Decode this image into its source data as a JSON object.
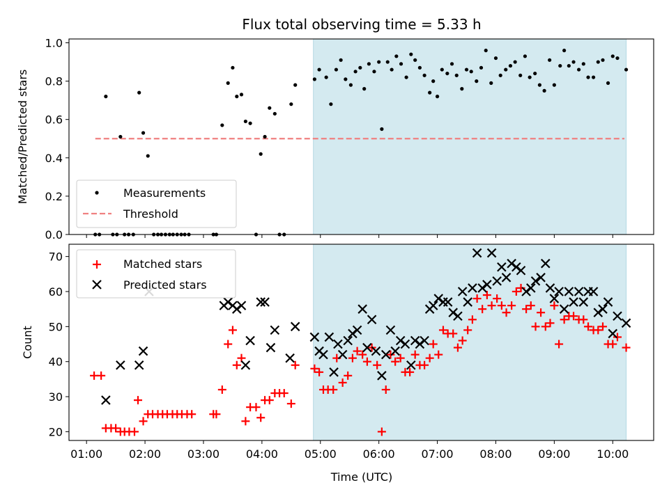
{
  "chart_data": {
    "title": "Flux total observing time = 5.33 h",
    "xlabel": "Time (UTC)",
    "x_tick_labels": [
      "01:00",
      "02:00",
      "03:00",
      "04:00",
      "05:00",
      "06:00",
      "07:00",
      "08:00",
      "09:00",
      "10:00"
    ],
    "x_ticks_hours": [
      1,
      2,
      3,
      4,
      5,
      6,
      7,
      8,
      9,
      10
    ],
    "xlim_hours": [
      0.7,
      10.7
    ],
    "shaded_span_hours": [
      4.88,
      10.23
    ],
    "colors": {
      "shade": "#d4eaf0",
      "threshold": "#f08080",
      "matched": "#ff0000",
      "predicted": "#000000"
    },
    "top": {
      "type": "scatter",
      "ylabel": "Matched/Predicted stars",
      "ylim": [
        0,
        1.02
      ],
      "y_ticks": [
        0.0,
        0.2,
        0.4,
        0.6,
        0.8,
        1.0
      ],
      "y_tick_labels": [
        "0.0",
        "0.2",
        "0.4",
        "0.6",
        "0.8",
        "1.0"
      ],
      "legend": [
        {
          "label": "Measurements",
          "marker": "dot"
        },
        {
          "label": "Threshold",
          "marker": "dashed"
        }
      ],
      "threshold": {
        "value": 0.5,
        "x_start": 1.15,
        "x_end": 10.2
      },
      "measurements": [
        [
          1.15,
          0.0
        ],
        [
          1.22,
          0.0
        ],
        [
          1.33,
          0.72
        ],
        [
          1.45,
          0.0
        ],
        [
          1.52,
          0.0
        ],
        [
          1.58,
          0.51
        ],
        [
          1.65,
          0.0
        ],
        [
          1.72,
          0.0
        ],
        [
          1.8,
          0.0
        ],
        [
          1.9,
          0.74
        ],
        [
          1.97,
          0.53
        ],
        [
          2.05,
          0.41
        ],
        [
          2.15,
          0.0
        ],
        [
          2.22,
          0.0
        ],
        [
          2.28,
          0.0
        ],
        [
          2.35,
          0.0
        ],
        [
          2.42,
          0.0
        ],
        [
          2.48,
          0.0
        ],
        [
          2.55,
          0.0
        ],
        [
          2.62,
          0.0
        ],
        [
          2.68,
          0.0
        ],
        [
          2.75,
          0.0
        ],
        [
          3.17,
          0.0
        ],
        [
          3.22,
          0.0
        ],
        [
          3.32,
          0.57
        ],
        [
          3.42,
          0.79
        ],
        [
          3.5,
          0.87
        ],
        [
          3.57,
          0.72
        ],
        [
          3.65,
          0.73
        ],
        [
          3.72,
          0.59
        ],
        [
          3.8,
          0.58
        ],
        [
          3.9,
          0.0
        ],
        [
          3.98,
          0.42
        ],
        [
          4.05,
          0.51
        ],
        [
          4.13,
          0.66
        ],
        [
          4.22,
          0.63
        ],
        [
          4.3,
          0.0
        ],
        [
          4.38,
          0.0
        ],
        [
          4.5,
          0.68
        ],
        [
          4.57,
          0.78
        ],
        [
          4.9,
          0.81
        ],
        [
          4.98,
          0.86
        ],
        [
          5.1,
          0.82
        ],
        [
          5.18,
          0.68
        ],
        [
          5.27,
          0.86
        ],
        [
          5.35,
          0.91
        ],
        [
          5.43,
          0.81
        ],
        [
          5.52,
          0.78
        ],
        [
          5.6,
          0.85
        ],
        [
          5.68,
          0.87
        ],
        [
          5.75,
          0.76
        ],
        [
          5.83,
          0.89
        ],
        [
          5.92,
          0.85
        ],
        [
          6.0,
          0.9
        ],
        [
          6.05,
          0.55
        ],
        [
          6.15,
          0.9
        ],
        [
          6.22,
          0.86
        ],
        [
          6.3,
          0.93
        ],
        [
          6.38,
          0.89
        ],
        [
          6.47,
          0.82
        ],
        [
          6.55,
          0.94
        ],
        [
          6.62,
          0.91
        ],
        [
          6.7,
          0.87
        ],
        [
          6.78,
          0.83
        ],
        [
          6.87,
          0.74
        ],
        [
          6.93,
          0.8
        ],
        [
          7.0,
          0.72
        ],
        [
          7.08,
          0.86
        ],
        [
          7.17,
          0.84
        ],
        [
          7.25,
          0.89
        ],
        [
          7.33,
          0.83
        ],
        [
          7.42,
          0.76
        ],
        [
          7.5,
          0.86
        ],
        [
          7.58,
          0.85
        ],
        [
          7.67,
          0.8
        ],
        [
          7.75,
          0.87
        ],
        [
          7.83,
          0.96
        ],
        [
          7.92,
          0.79
        ],
        [
          8.0,
          0.92
        ],
        [
          8.08,
          0.83
        ],
        [
          8.17,
          0.86
        ],
        [
          8.25,
          0.88
        ],
        [
          8.33,
          0.9
        ],
        [
          8.42,
          0.83
        ],
        [
          8.5,
          0.93
        ],
        [
          8.58,
          0.82
        ],
        [
          8.67,
          0.84
        ],
        [
          8.75,
          0.78
        ],
        [
          8.83,
          0.75
        ],
        [
          8.92,
          0.91
        ],
        [
          9.0,
          0.78
        ],
        [
          9.1,
          0.88
        ],
        [
          9.17,
          0.96
        ],
        [
          9.25,
          0.88
        ],
        [
          9.33,
          0.9
        ],
        [
          9.42,
          0.86
        ],
        [
          9.5,
          0.89
        ],
        [
          9.58,
          0.82
        ],
        [
          9.67,
          0.82
        ],
        [
          9.75,
          0.9
        ],
        [
          9.83,
          0.91
        ],
        [
          9.92,
          0.79
        ],
        [
          10.0,
          0.93
        ],
        [
          10.08,
          0.92
        ],
        [
          10.23,
          0.86
        ]
      ]
    },
    "bottom": {
      "type": "scatter",
      "ylabel": "Count",
      "ylim": [
        17.5,
        73.5
      ],
      "y_ticks": [
        20,
        30,
        40,
        50,
        60,
        70
      ],
      "y_tick_labels": [
        "20",
        "30",
        "40",
        "50",
        "60",
        "70"
      ],
      "legend": [
        {
          "label": "Matched stars",
          "marker": "plus"
        },
        {
          "label": "Predicted stars",
          "marker": "cross"
        }
      ],
      "matched": [
        [
          1.13,
          36
        ],
        [
          1.25,
          36
        ],
        [
          1.33,
          21
        ],
        [
          1.42,
          21
        ],
        [
          1.5,
          21
        ],
        [
          1.58,
          20
        ],
        [
          1.65,
          20
        ],
        [
          1.73,
          20
        ],
        [
          1.82,
          20
        ],
        [
          1.88,
          29
        ],
        [
          1.97,
          23
        ],
        [
          2.05,
          25
        ],
        [
          2.13,
          25
        ],
        [
          2.22,
          25
        ],
        [
          2.3,
          25
        ],
        [
          2.38,
          25
        ],
        [
          2.47,
          25
        ],
        [
          2.55,
          25
        ],
        [
          2.63,
          25
        ],
        [
          2.72,
          25
        ],
        [
          2.8,
          25
        ],
        [
          3.17,
          25
        ],
        [
          3.22,
          25
        ],
        [
          3.32,
          32
        ],
        [
          3.42,
          45
        ],
        [
          3.5,
          49
        ],
        [
          3.57,
          39
        ],
        [
          3.65,
          41
        ],
        [
          3.72,
          23
        ],
        [
          3.8,
          27
        ],
        [
          3.9,
          27
        ],
        [
          3.98,
          24
        ],
        [
          4.05,
          29
        ],
        [
          4.13,
          29
        ],
        [
          4.22,
          31
        ],
        [
          4.3,
          31
        ],
        [
          4.38,
          31
        ],
        [
          4.5,
          28
        ],
        [
          4.57,
          39
        ],
        [
          4.9,
          38
        ],
        [
          4.98,
          37
        ],
        [
          5.05,
          32
        ],
        [
          5.13,
          32
        ],
        [
          5.22,
          32
        ],
        [
          5.28,
          41
        ],
        [
          5.38,
          34
        ],
        [
          5.47,
          36
        ],
        [
          5.55,
          41
        ],
        [
          5.63,
          43
        ],
        [
          5.72,
          42
        ],
        [
          5.8,
          40
        ],
        [
          5.88,
          44
        ],
        [
          5.97,
          39
        ],
        [
          6.05,
          20
        ],
        [
          6.12,
          32
        ],
        [
          6.2,
          42
        ],
        [
          6.28,
          40
        ],
        [
          6.37,
          41
        ],
        [
          6.45,
          37
        ],
        [
          6.53,
          37
        ],
        [
          6.62,
          42
        ],
        [
          6.7,
          39
        ],
        [
          6.78,
          39
        ],
        [
          6.87,
          41
        ],
        [
          6.93,
          45
        ],
        [
          7.02,
          42
        ],
        [
          7.1,
          49
        ],
        [
          7.18,
          48
        ],
        [
          7.27,
          48
        ],
        [
          7.35,
          44
        ],
        [
          7.43,
          46
        ],
        [
          7.52,
          49
        ],
        [
          7.6,
          52
        ],
        [
          7.68,
          58
        ],
        [
          7.77,
          55
        ],
        [
          7.85,
          59
        ],
        [
          7.93,
          56
        ],
        [
          8.02,
          58
        ],
        [
          8.1,
          56
        ],
        [
          8.18,
          54
        ],
        [
          8.27,
          56
        ],
        [
          8.35,
          60
        ],
        [
          8.43,
          61
        ],
        [
          8.52,
          55
        ],
        [
          8.6,
          56
        ],
        [
          8.68,
          50
        ],
        [
          8.77,
          54
        ],
        [
          8.85,
          50
        ],
        [
          8.93,
          51
        ],
        [
          9.0,
          56
        ],
        [
          9.08,
          45
        ],
        [
          9.17,
          52
        ],
        [
          9.25,
          53
        ],
        [
          9.33,
          53
        ],
        [
          9.42,
          52
        ],
        [
          9.5,
          52
        ],
        [
          9.58,
          50
        ],
        [
          9.67,
          49
        ],
        [
          9.75,
          49
        ],
        [
          9.83,
          50
        ],
        [
          9.92,
          45
        ],
        [
          10.0,
          45
        ],
        [
          10.08,
          47
        ],
        [
          10.23,
          44
        ]
      ],
      "predicted": [
        [
          1.33,
          29
        ],
        [
          1.58,
          39
        ],
        [
          1.9,
          39
        ],
        [
          1.97,
          43
        ],
        [
          2.07,
          60
        ],
        [
          3.35,
          56
        ],
        [
          3.42,
          57
        ],
        [
          3.5,
          56
        ],
        [
          3.57,
          55
        ],
        [
          3.65,
          56
        ],
        [
          3.72,
          39
        ],
        [
          3.8,
          46
        ],
        [
          3.98,
          57
        ],
        [
          4.05,
          57
        ],
        [
          4.15,
          44
        ],
        [
          4.22,
          49
        ],
        [
          4.48,
          41
        ],
        [
          4.57,
          50
        ],
        [
          4.9,
          47
        ],
        [
          4.98,
          43
        ],
        [
          5.05,
          42
        ],
        [
          5.15,
          47
        ],
        [
          5.23,
          37
        ],
        [
          5.3,
          45
        ],
        [
          5.38,
          42
        ],
        [
          5.47,
          46
        ],
        [
          5.55,
          48
        ],
        [
          5.63,
          49
        ],
        [
          5.72,
          55
        ],
        [
          5.8,
          44
        ],
        [
          5.88,
          52
        ],
        [
          5.95,
          43
        ],
        [
          6.05,
          36
        ],
        [
          6.12,
          42
        ],
        [
          6.2,
          49
        ],
        [
          6.28,
          43
        ],
        [
          6.37,
          46
        ],
        [
          6.45,
          45
        ],
        [
          6.55,
          39
        ],
        [
          6.62,
          46
        ],
        [
          6.7,
          45
        ],
        [
          6.78,
          46
        ],
        [
          6.87,
          55
        ],
        [
          6.93,
          56
        ],
        [
          7.02,
          58
        ],
        [
          7.1,
          57
        ],
        [
          7.18,
          57
        ],
        [
          7.27,
          54
        ],
        [
          7.35,
          53
        ],
        [
          7.43,
          60
        ],
        [
          7.52,
          57
        ],
        [
          7.6,
          61
        ],
        [
          7.68,
          71
        ],
        [
          7.77,
          61
        ],
        [
          7.85,
          62
        ],
        [
          7.93,
          71
        ],
        [
          8.02,
          63
        ],
        [
          8.1,
          67
        ],
        [
          8.18,
          64
        ],
        [
          8.27,
          68
        ],
        [
          8.35,
          67
        ],
        [
          8.43,
          66
        ],
        [
          8.52,
          60
        ],
        [
          8.6,
          61
        ],
        [
          8.68,
          63
        ],
        [
          8.77,
          64
        ],
        [
          8.85,
          68
        ],
        [
          8.93,
          61
        ],
        [
          9.0,
          58
        ],
        [
          9.08,
          60
        ],
        [
          9.17,
          55
        ],
        [
          9.25,
          60
        ],
        [
          9.33,
          57
        ],
        [
          9.42,
          60
        ],
        [
          9.5,
          57
        ],
        [
          9.58,
          60
        ],
        [
          9.67,
          60
        ],
        [
          9.75,
          54
        ],
        [
          9.83,
          55
        ],
        [
          9.92,
          57
        ],
        [
          10.0,
          48
        ],
        [
          10.08,
          53
        ],
        [
          10.23,
          51
        ]
      ]
    }
  }
}
